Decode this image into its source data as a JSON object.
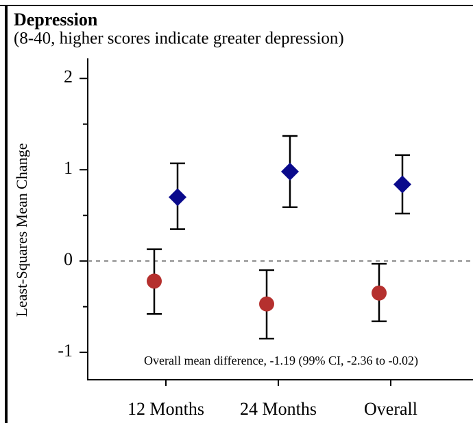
{
  "chart_data": {
    "type": "errorbar",
    "title": "Depression",
    "subtitle": "(8-40, higher scores indicate greater depression)",
    "y_label": "Least-Squares Mean Change",
    "annotation": "Overall mean difference, -1.19 (99% CI, -2.36 to -0.02)",
    "categories": [
      "12 Months",
      "24 Months",
      "Overall"
    ],
    "series": [
      {
        "color": "#b5302e",
        "marker": "circle",
        "values": [
          -0.22,
          -0.47,
          -0.35
        ],
        "lower": [
          -0.58,
          -0.85,
          -0.66
        ],
        "upper": [
          0.13,
          -0.1,
          -0.03
        ]
      },
      {
        "color": "#0a0a8c",
        "marker": "diamond",
        "values": [
          0.7,
          0.98,
          0.84
        ],
        "lower": [
          0.35,
          0.59,
          0.52
        ],
        "upper": [
          1.07,
          1.37,
          1.16
        ]
      }
    ],
    "ylim": [
      -1.3,
      2.22
    ],
    "yticks": [
      -1,
      0,
      1,
      2
    ],
    "yminorticks": [
      -0.5,
      0.5,
      1.5
    ],
    "reference_line": 0
  }
}
